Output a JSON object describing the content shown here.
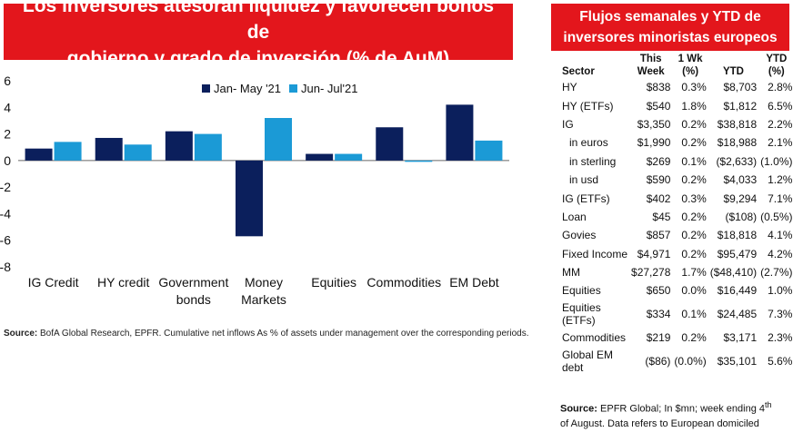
{
  "left_title": {
    "line1": "Los inversores atesoran liquidez y favorecen bonos de",
    "line2": "gobierno y grado de inversión (% de AuM)"
  },
  "left_source": {
    "label": "Source:",
    "text": " BofA Global Research, EPFR. Cumulative net inflows As % of assets under management over the corresponding periods."
  },
  "colors": {
    "title_bg": "#e3161c",
    "series1": "#0b1f5c",
    "series2": "#1b9ad6"
  },
  "chart_data": {
    "type": "bar",
    "title": "",
    "xlabel": "",
    "ylabel": "",
    "ylim": [
      -8,
      6
    ],
    "yticks": [
      "6",
      "4",
      "2",
      "0",
      "-2",
      "-4",
      "-6",
      "-8"
    ],
    "categories": [
      [
        "IG Credit"
      ],
      [
        "HY credit"
      ],
      [
        "Government",
        "bonds"
      ],
      [
        "Money",
        "Markets"
      ],
      [
        "Equities"
      ],
      [
        "Commodities"
      ],
      [
        "EM Debt"
      ]
    ],
    "legend_position": "top-center",
    "series": [
      {
        "name": "Jan- May '21",
        "values": [
          0.9,
          1.7,
          2.2,
          -5.7,
          0.5,
          2.5,
          4.2
        ]
      },
      {
        "name": "Jun- Jul'21",
        "values": [
          1.4,
          1.2,
          2.0,
          3.2,
          0.5,
          -0.1,
          1.5
        ]
      }
    ]
  },
  "right_title": {
    "line1": "Flujos semanales y YTD de",
    "line2": "inversores minoristas europeos"
  },
  "table": {
    "headers": {
      "sector": "Sector",
      "this_week": [
        "This",
        "Week"
      ],
      "one_wk": [
        "1 Wk",
        "(%)"
      ],
      "ytd": [
        "YTD"
      ],
      "ytd_pct": [
        "YTD",
        "(%)"
      ]
    },
    "rows": [
      {
        "sector": [
          "HY"
        ],
        "week": "$838",
        "wk_pct": "0.3%",
        "ytd": "$8,703",
        "ytd_pct": "2.8%"
      },
      {
        "sector": [
          "HY (ETFs)"
        ],
        "week": "$540",
        "wk_pct": "1.8%",
        "ytd": "$1,812",
        "ytd_pct": "6.5%"
      },
      {
        "sector": [
          "IG"
        ],
        "week": "$3,350",
        "wk_pct": "0.2%",
        "ytd": "$38,818",
        "ytd_pct": "2.2%"
      },
      {
        "sector": [
          "in euros"
        ],
        "indent": true,
        "week": "$1,990",
        "wk_pct": "0.2%",
        "ytd": "$18,988",
        "ytd_pct": "2.1%"
      },
      {
        "sector": [
          "in sterling"
        ],
        "indent": true,
        "week": "$269",
        "wk_pct": "0.1%",
        "ytd": "($2,633)",
        "ytd_pct": "(1.0%)"
      },
      {
        "sector": [
          "in usd"
        ],
        "indent": true,
        "week": "$590",
        "wk_pct": "0.2%",
        "ytd": "$4,033",
        "ytd_pct": "1.2%"
      },
      {
        "sector": [
          "IG (ETFs)"
        ],
        "week": "$402",
        "wk_pct": "0.3%",
        "ytd": "$9,294",
        "ytd_pct": "7.1%"
      },
      {
        "sector": [
          "Loan"
        ],
        "week": "$45",
        "wk_pct": "0.2%",
        "ytd": "($108)",
        "ytd_pct": "(0.5%)"
      },
      {
        "sector": [
          "Govies"
        ],
        "week": "$857",
        "wk_pct": "0.2%",
        "ytd": "$18,818",
        "ytd_pct": "4.1%"
      },
      {
        "sector": [
          "Fixed Income"
        ],
        "week": "$4,971",
        "wk_pct": "0.2%",
        "ytd": "$95,479",
        "ytd_pct": "4.2%"
      },
      {
        "sector": [
          "MM"
        ],
        "week": "$27,278",
        "wk_pct": "1.7%",
        "ytd": "($48,410)",
        "ytd_pct": "(2.7%)"
      },
      {
        "sector": [
          "Equities"
        ],
        "week": "$650",
        "wk_pct": "0.0%",
        "ytd": "$16,449",
        "ytd_pct": "1.0%"
      },
      {
        "sector": [
          "Equities",
          "(ETFs)"
        ],
        "week": "$334",
        "wk_pct": "0.1%",
        "ytd": "$24,485",
        "ytd_pct": "7.3%"
      },
      {
        "sector": [
          "Commodities"
        ],
        "week": "$219",
        "wk_pct": "0.2%",
        "ytd": "$3,171",
        "ytd_pct": "2.3%"
      },
      {
        "sector": [
          "Global EM",
          "debt"
        ],
        "week": "($86)",
        "wk_pct": "(0.0%)",
        "ytd": "$35,101",
        "ytd_pct": "5.6%"
      }
    ]
  },
  "right_source": {
    "label": "Source:",
    "text1": " EPFR Global; In $mn; week ending 4",
    "sup": "th",
    "text2": "of August. Data refers to European domiciled"
  }
}
